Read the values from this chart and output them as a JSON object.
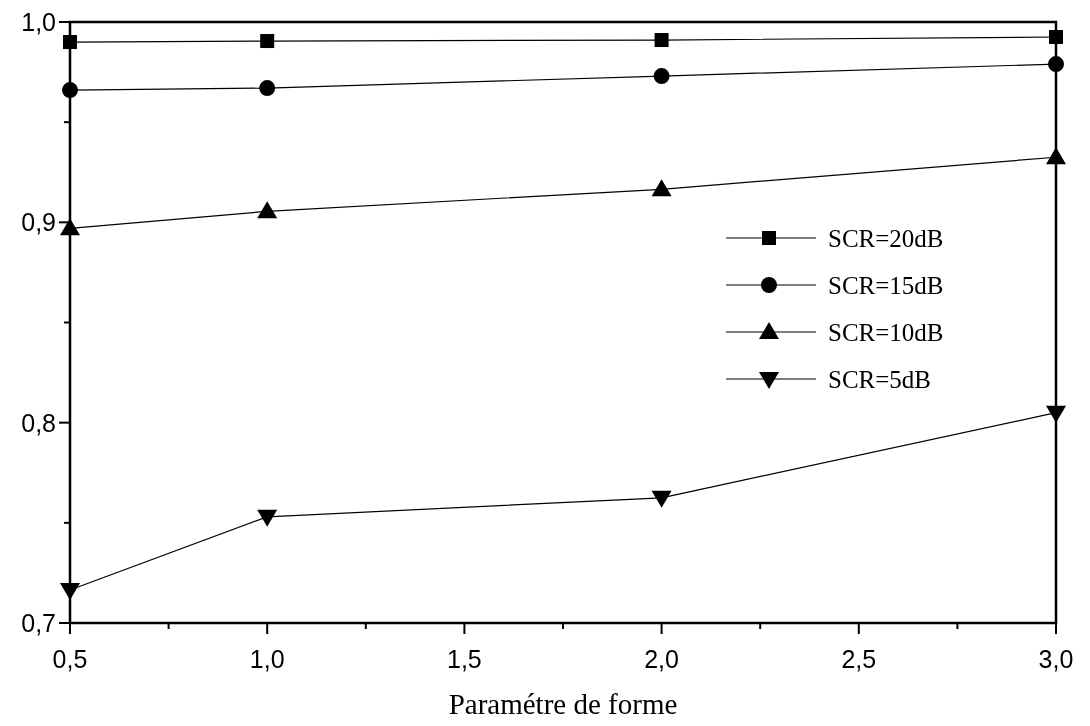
{
  "chart_data": {
    "type": "line",
    "xlabel": "Paramétre de forme",
    "x": [
      0.5,
      1.0,
      2.0,
      3.0
    ],
    "series": [
      {
        "name": "SCR=20dB",
        "color": "#000000",
        "marker": "square",
        "values": [
          0.99,
          0.9905,
          0.991,
          0.9925
        ]
      },
      {
        "name": "SCR=15dB",
        "color": "#000000",
        "marker": "circle",
        "values": [
          0.966,
          0.967,
          0.973,
          0.979
        ]
      },
      {
        "name": "SCR=10dB",
        "color": "#000000",
        "marker": "triangle",
        "values": [
          0.897,
          0.9055,
          0.9165,
          0.9325
        ]
      },
      {
        "name": "SCR=5dB",
        "color": "#000000",
        "marker": "triangle-down",
        "values": [
          0.7165,
          0.753,
          0.7625,
          0.805
        ]
      }
    ],
    "xlim": [
      0.5,
      3.0
    ],
    "xticks": [
      {
        "value": 0.5,
        "label": "0,5"
      },
      {
        "value": 0.75,
        "label": null
      },
      {
        "value": 1.0,
        "label": "1,0"
      },
      {
        "value": 1.25,
        "label": null
      },
      {
        "value": 1.5,
        "label": "1,5"
      },
      {
        "value": 1.75,
        "label": null
      },
      {
        "value": 2.0,
        "label": "2,0"
      },
      {
        "value": 2.25,
        "label": null
      },
      {
        "value": 2.5,
        "label": "2,5"
      },
      {
        "value": 2.75,
        "label": null
      },
      {
        "value": 3.0,
        "label": "3,0"
      }
    ],
    "ylim": [
      0.7,
      1.0
    ],
    "yticks": [
      {
        "value": 0.7,
        "label": "0,7"
      },
      {
        "value": 0.75,
        "label": null
      },
      {
        "value": 0.8,
        "label": "0,8"
      },
      {
        "value": 0.85,
        "label": null
      },
      {
        "value": 0.9,
        "label": "0,9"
      },
      {
        "value": 0.95,
        "label": null
      },
      {
        "value": 1.0,
        "label": "1,0"
      }
    ],
    "legend": "right",
    "grid": false,
    "line_style": "solid"
  }
}
